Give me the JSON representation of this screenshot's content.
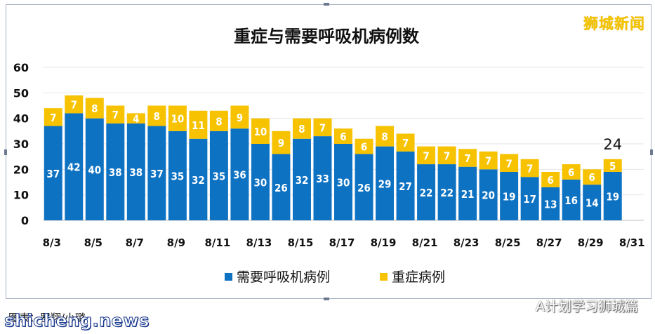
{
  "watermark_top_right": "狮城新闻",
  "source_caption": "图表：罗翔/小璐",
  "site_watermark": "shicheng.news",
  "wechat_watermark": "A计划学习狮城篇",
  "colors": {
    "series1": "#0e72c3",
    "series2": "#f7c200",
    "text": "#111111",
    "grid": "#e6e6e6"
  },
  "chart_data": {
    "type": "bar",
    "stacked": true,
    "title": "重症与需要呼吸机病例数",
    "xlabel": "",
    "ylabel": "",
    "ylim": [
      0,
      60
    ],
    "yticks": [
      "0",
      "10",
      "20",
      "30",
      "40",
      "50",
      "60"
    ],
    "categories": [
      "8/3",
      "8/4",
      "8/5",
      "8/6",
      "8/7",
      "8/8",
      "8/9",
      "8/10",
      "8/11",
      "8/12",
      "8/13",
      "8/14",
      "8/15",
      "8/16",
      "8/17",
      "8/18",
      "8/19",
      "8/20",
      "8/21",
      "8/22",
      "8/23",
      "8/24",
      "8/25",
      "8/26",
      "8/27",
      "8/28",
      "8/29",
      "8/30",
      "8/31"
    ],
    "xtick_labels": [
      "8/3",
      "8/5",
      "8/7",
      "8/9",
      "8/11",
      "8/13",
      "8/15",
      "8/17",
      "8/19",
      "8/21",
      "8/23",
      "8/25",
      "8/27",
      "8/29",
      "8/31"
    ],
    "series": [
      {
        "name": "需要呼吸机病例",
        "values": [
          37,
          42,
          40,
          38,
          38,
          37,
          35,
          32,
          35,
          36,
          30,
          26,
          32,
          33,
          30,
          26,
          29,
          27,
          22,
          22,
          21,
          20,
          19,
          17,
          13,
          16,
          14,
          19,
          null
        ]
      },
      {
        "name": "重症病例",
        "values": [
          7,
          7,
          8,
          7,
          4,
          8,
          10,
          11,
          8,
          9,
          10,
          9,
          8,
          7,
          6,
          6,
          8,
          7,
          7,
          7,
          7,
          7,
          7,
          7,
          6,
          6,
          6,
          5,
          null
        ]
      }
    ],
    "annotations": [
      {
        "category": "8/30",
        "text": "24"
      }
    ],
    "legend_position": "bottom",
    "grid": true
  }
}
